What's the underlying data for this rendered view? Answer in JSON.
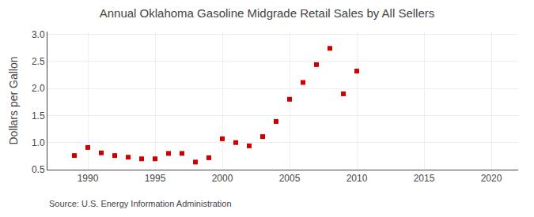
{
  "chart_data": {
    "type": "scatter",
    "title": "Annual Oklahoma Gasoline Midgrade Retail Sales by All Sellers",
    "ylabel": "Dollars per Gallon",
    "annotations": [
      "Source: U.S. Energy Information Administration"
    ],
    "x": [
      1989,
      1990,
      1991,
      1992,
      1993,
      1994,
      1995,
      1996,
      1997,
      1998,
      1999,
      2000,
      2001,
      2002,
      2003,
      2004,
      2005,
      2006,
      2007,
      2008,
      2009,
      2010
    ],
    "values": [
      0.76,
      0.91,
      0.81,
      0.76,
      0.73,
      0.7,
      0.7,
      0.8,
      0.8,
      0.64,
      0.72,
      1.07,
      1.0,
      0.94,
      1.11,
      1.39,
      1.8,
      2.11,
      2.44,
      2.74,
      1.9,
      2.32
    ],
    "color": "#cc0000",
    "marker": "square",
    "xlim": [
      1987,
      2022
    ],
    "ylim": [
      0.5,
      3.05
    ],
    "xticks": [
      1990,
      1995,
      2000,
      2005,
      2010,
      2015,
      2020
    ],
    "yticks": [
      0.5,
      {
        "value": 1.0,
        "label": "1.0"
      },
      1.5,
      {
        "value": 2.0,
        "label": "2.0"
      },
      2.5,
      {
        "value": 3.0,
        "label": "3.0"
      }
    ],
    "grid": true
  }
}
